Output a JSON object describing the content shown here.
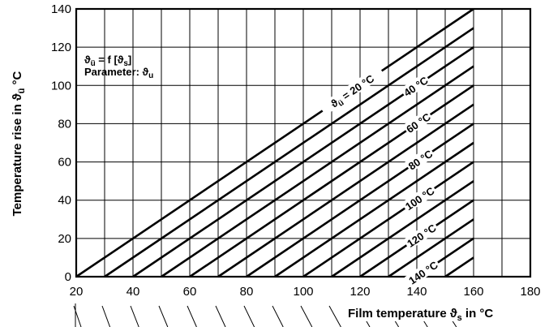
{
  "chart_data": {
    "type": "line",
    "x_label": "Film temperature",
    "x_label_symbol": "ϑ",
    "x_label_sub": "s",
    "x_label_unit": "in °C",
    "y_label": "Temperature rise in",
    "y_label_symbol": "ϑ",
    "y_label_sub": "ü",
    "y_label_unit": "°C",
    "x_ticks": [
      20,
      40,
      60,
      80,
      100,
      120,
      140,
      160,
      180
    ],
    "y_ticks": [
      0,
      20,
      40,
      60,
      80,
      100,
      120,
      140
    ],
    "xlim": [
      20,
      180
    ],
    "ylim": [
      0,
      140
    ],
    "grid": true,
    "annotation": {
      "line1_symbol": "ϑ",
      "line1_sub": "ü",
      "line1_mid": " = f [",
      "line1_sub2": "s",
      "line1_end": "]",
      "line2": "Parameter: ",
      "line2_symbol": "ϑ",
      "line2_sub": "u"
    },
    "series_label_first": {
      "symbol": "ϑ",
      "sub": "ü",
      "text": " = 20 °C"
    },
    "series": [
      {
        "parameter": 20,
        "label": "20 °C",
        "x": [
          20,
          160
        ],
        "y": [
          0,
          140
        ]
      },
      {
        "parameter": 30,
        "x": [
          30,
          160
        ],
        "y": [
          0,
          130
        ]
      },
      {
        "parameter": 40,
        "label": "40 °C",
        "x": [
          40,
          160
        ],
        "y": [
          0,
          120
        ]
      },
      {
        "parameter": 50,
        "x": [
          50,
          160
        ],
        "y": [
          0,
          110
        ]
      },
      {
        "parameter": 60,
        "label": "60 °C",
        "x": [
          60,
          160
        ],
        "y": [
          0,
          100
        ]
      },
      {
        "parameter": 70,
        "x": [
          70,
          160
        ],
        "y": [
          0,
          90
        ]
      },
      {
        "parameter": 80,
        "label": "80 °C",
        "x": [
          80,
          160
        ],
        "y": [
          0,
          80
        ]
      },
      {
        "parameter": 90,
        "x": [
          90,
          160
        ],
        "y": [
          0,
          70
        ]
      },
      {
        "parameter": 100,
        "label": "100 °C",
        "x": [
          100,
          160
        ],
        "y": [
          0,
          60
        ]
      },
      {
        "parameter": 110,
        "x": [
          110,
          160
        ],
        "y": [
          0,
          50
        ]
      },
      {
        "parameter": 120,
        "label": "120 °C",
        "x": [
          120,
          160
        ],
        "y": [
          0,
          40
        ]
      },
      {
        "parameter": 130,
        "x": [
          130,
          160
        ],
        "y": [
          0,
          30
        ]
      },
      {
        "parameter": 140,
        "label": "140 °C",
        "x": [
          140,
          160
        ],
        "y": [
          0,
          20
        ]
      },
      {
        "parameter": 150,
        "x": [
          150,
          160
        ],
        "y": [
          0,
          10
        ]
      }
    ]
  }
}
